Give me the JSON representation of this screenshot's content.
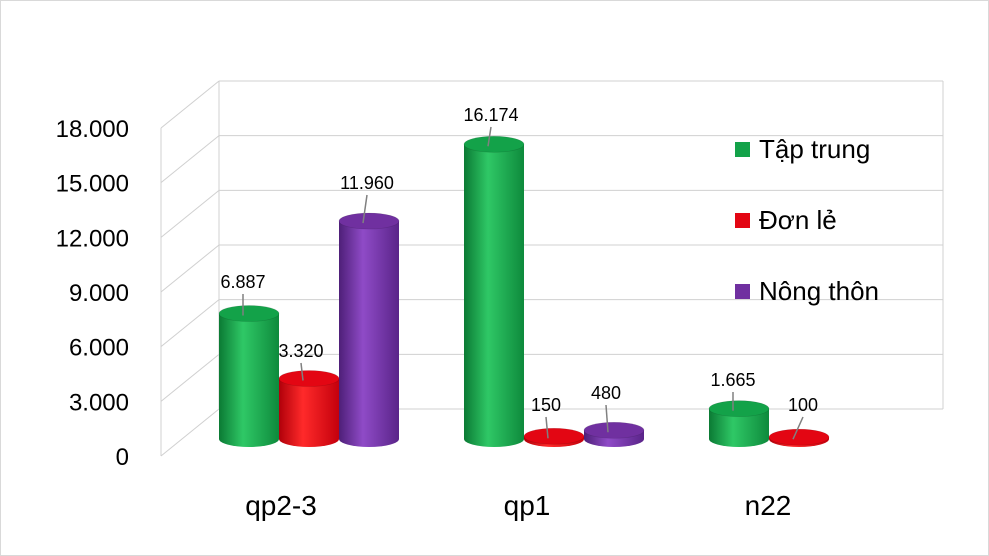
{
  "chart_data": {
    "type": "bar",
    "categories": [
      "qp2-3",
      "qp1",
      "n22"
    ],
    "series": [
      {
        "name": "Tập trung",
        "color": "#13A249",
        "values": [
          6887,
          16174,
          1665
        ],
        "labels": [
          "6.887",
          "16.174",
          "1.665"
        ]
      },
      {
        "name": "Đơn lẻ",
        "color": "#E30613",
        "values": [
          3320,
          150,
          100
        ],
        "labels": [
          "3.320",
          "150",
          "100"
        ]
      },
      {
        "name": "Nông thôn",
        "color": "#7030A0",
        "values": [
          11960,
          480,
          null
        ],
        "labels": [
          "11.960",
          "480",
          ""
        ]
      }
    ],
    "y_ticks": [
      "0",
      "3.000",
      "6.000",
      "9.000",
      "12.000",
      "15.000",
      "18.000"
    ],
    "ylim": [
      0,
      18000
    ],
    "grid": true,
    "legend_position": "right"
  }
}
